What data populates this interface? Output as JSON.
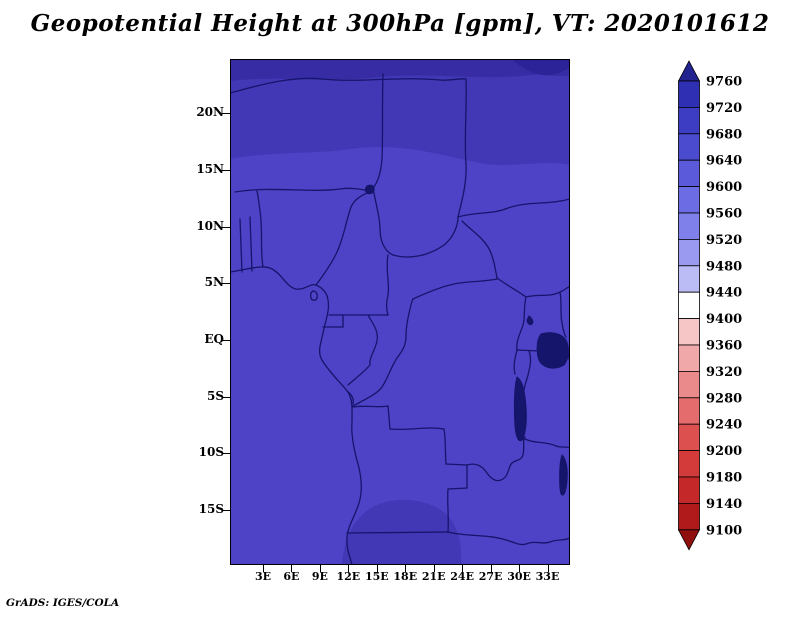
{
  "title": "Geopotential Height at 300hPa [gpm], VT: 2020101612",
  "credit": "GrADS: IGES/COLA",
  "axes": {
    "lat_ticks": [
      "20N",
      "15N",
      "10N",
      "5N",
      "EQ",
      "5S",
      "10S",
      "15S"
    ],
    "lon_ticks": [
      "3E",
      "6E",
      "9E",
      "12E",
      "15E",
      "18E",
      "21E",
      "24E",
      "27E",
      "30E",
      "33E"
    ]
  },
  "colorbar": {
    "labels": [
      "9760",
      "9720",
      "9680",
      "9640",
      "9600",
      "9560",
      "9520",
      "9480",
      "9440",
      "9400",
      "9360",
      "9320",
      "9280",
      "9240",
      "9200",
      "9180",
      "9140",
      "9100"
    ],
    "segments": [
      "#2f2fb4",
      "#3d3dc4",
      "#4b4bd0",
      "#5a5adb",
      "#6c6ce4",
      "#8080ea",
      "#9a9af0",
      "#bbbbf6",
      "#ffffff",
      "#f6c6c6",
      "#f1a8a8",
      "#eb8a8a",
      "#e56c6c",
      "#dd5050",
      "#d33a3a",
      "#c52828",
      "#b11a1a"
    ],
    "top_arrow_color": "#23238f",
    "bottom_arrow_color": "#8f0e0e"
  },
  "map": {
    "base_color": "#4e43c6",
    "band_color": "#4237b4",
    "band2_color": "#372ca3",
    "blob_color": "#2c2399",
    "south_patch_color": "#4237b4",
    "border_color": "#15156b",
    "lake_color": "#15156b",
    "frame_color": "#000000"
  },
  "chart_data": {
    "type": "heatmap",
    "title": "Geopotential Height at 300hPa [gpm], VT: 2020101612",
    "variable": "Geopotential Height",
    "level": "300hPa",
    "units": "gpm",
    "valid_time": "2020101612",
    "x_ticks": [
      "3E",
      "6E",
      "9E",
      "12E",
      "15E",
      "18E",
      "21E",
      "24E",
      "27E",
      "30E",
      "33E"
    ],
    "y_ticks": [
      "20N",
      "15N",
      "10N",
      "5N",
      "EQ",
      "5S",
      "10S",
      "15S"
    ],
    "x_range_deg_east": [
      0,
      35.5
    ],
    "y_range_deg_north": [
      -19.5,
      24.5
    ],
    "colorbar_levels": [
      9100,
      9140,
      9180,
      9200,
      9240,
      9280,
      9320,
      9360,
      9400,
      9440,
      9480,
      9520,
      9560,
      9600,
      9640,
      9680,
      9720,
      9760
    ],
    "legend_position": "right",
    "grid": false,
    "field_regions": [
      {
        "region": "most of domain (15S to 15N, central Africa)",
        "approx_value_gpm": "9600-9640"
      },
      {
        "region": "northern band (15N-22N, Sahel)",
        "approx_value_gpm": "9640-9680"
      },
      {
        "region": "far northern edge (north of ~22N)",
        "approx_value_gpm": "9680-9720"
      },
      {
        "region": "southern Angola (13S-18S)",
        "approx_value_gpm": "9640-9680"
      }
    ],
    "source": "GrADS: IGES/COLA"
  }
}
